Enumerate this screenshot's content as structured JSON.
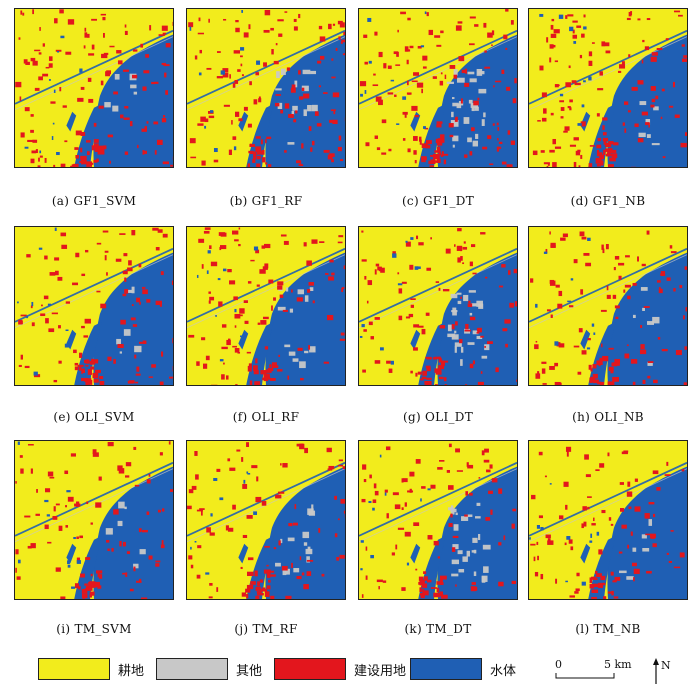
{
  "panels": [
    {
      "caption": "(a) GF1_SVM"
    },
    {
      "caption": "(b) GF1_RF"
    },
    {
      "caption": "(c) GF1_DT"
    },
    {
      "caption": "(d) GF1_NB"
    },
    {
      "caption": "(e) OLI_SVM"
    },
    {
      "caption": "(f) OLI_RF"
    },
    {
      "caption": "(g) OLI_DT"
    },
    {
      "caption": "(h) OLI_NB"
    },
    {
      "caption": "(i) TM_SVM"
    },
    {
      "caption": "(j) TM_RF"
    },
    {
      "caption": "(k) TM_DT"
    },
    {
      "caption": "(l) TM_NB"
    }
  ],
  "legend": {
    "items": [
      {
        "label": "耕地",
        "color": "#f2ec1c"
      },
      {
        "label": "其他",
        "color": "#c8c8c8"
      },
      {
        "label": "建设用地",
        "color": "#e3161d"
      },
      {
        "label": "水体",
        "color": "#1f5fb4"
      }
    ],
    "scale": {
      "zero": "0",
      "end": "5 km"
    },
    "north": "N"
  }
}
